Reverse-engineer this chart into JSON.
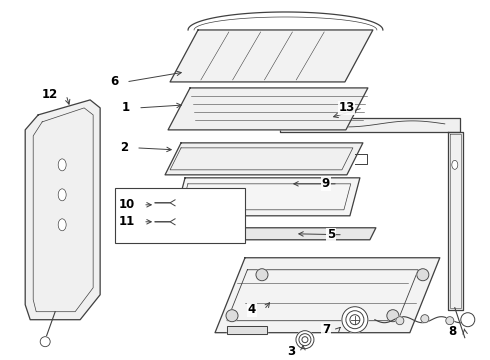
{
  "bg_color": "#ffffff",
  "line_color": "#404040",
  "label_fontsize": 8.5,
  "figsize": [
    4.9,
    3.6
  ],
  "dpi": 100
}
